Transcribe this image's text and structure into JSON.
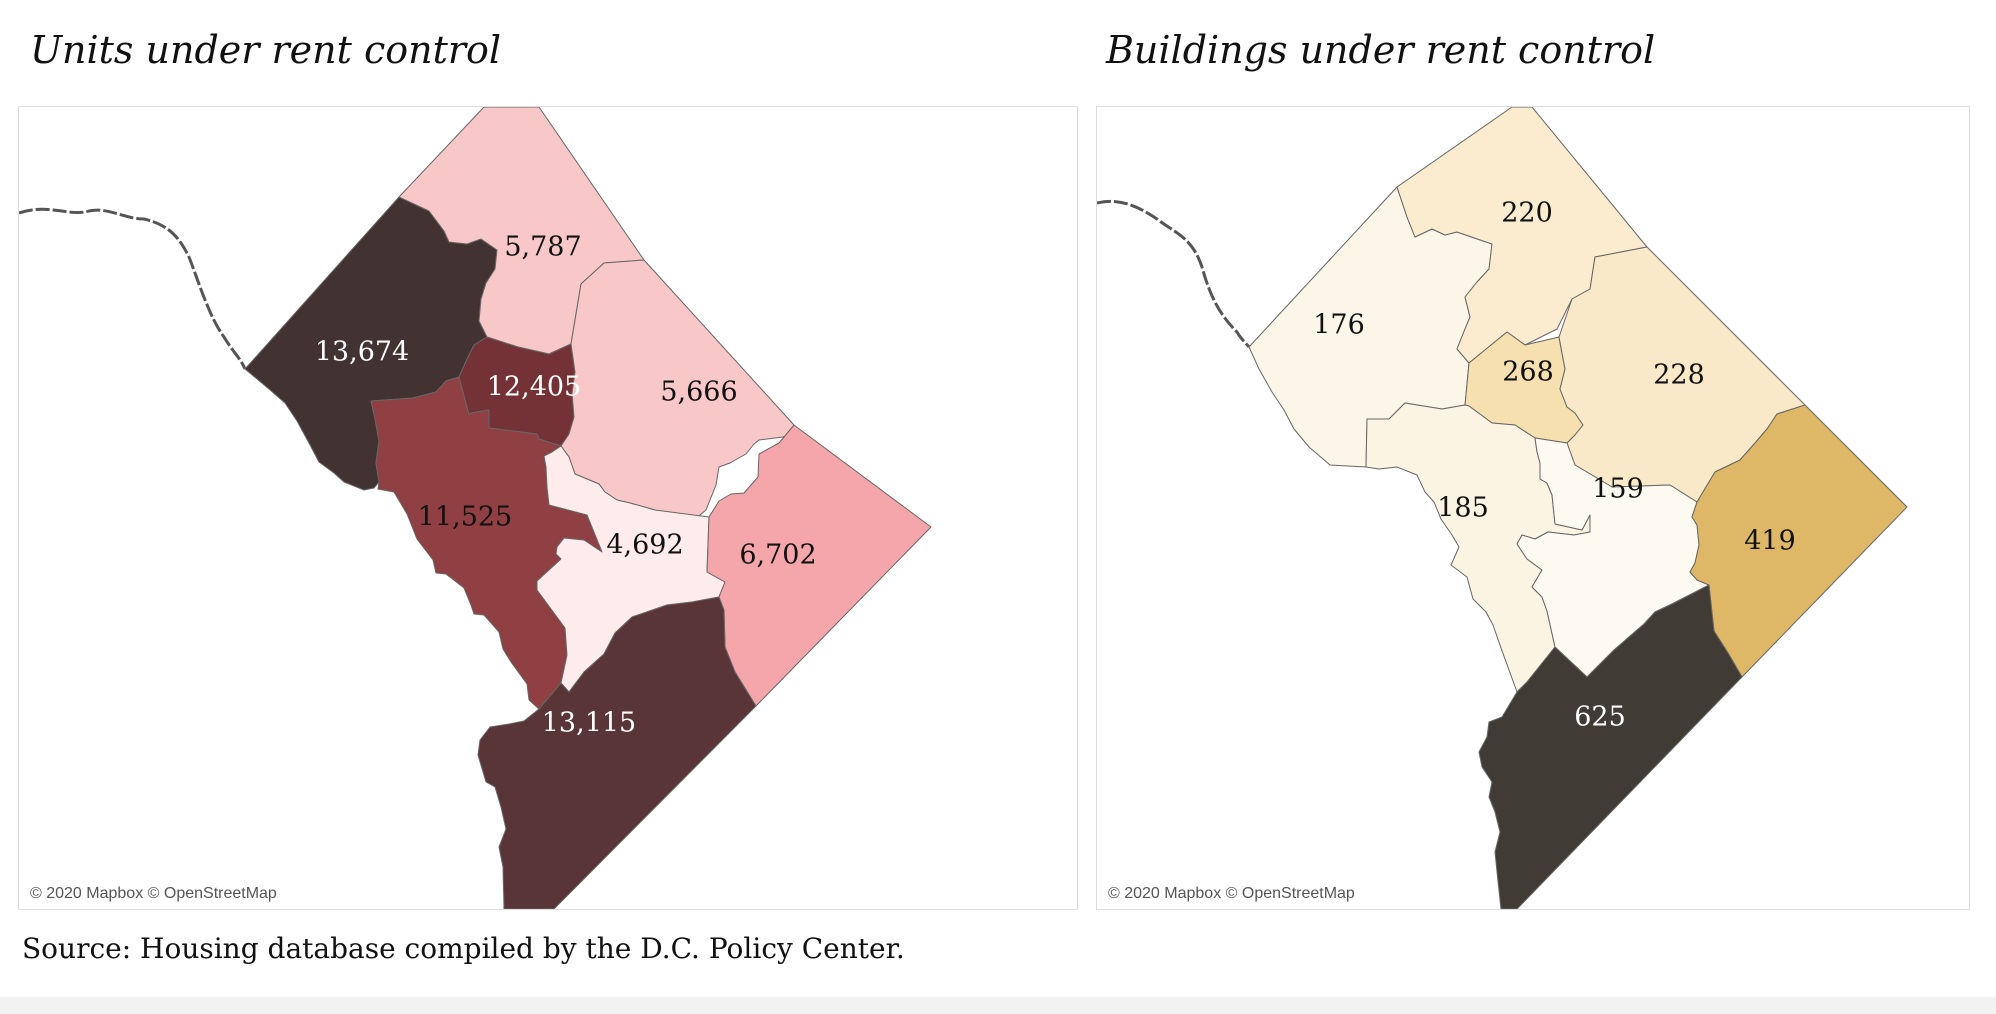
{
  "maps": [
    {
      "title": "Units under rent control",
      "attribution": "© 2020 Mapbox © OpenStreetMap",
      "legend": "none",
      "wards": [
        {
          "value": "13,674",
          "color": "#433232",
          "text_color": "#ffffff"
        },
        {
          "value": "5,787",
          "color": "#f8c8c9",
          "text_color": "#111111"
        },
        {
          "value": "12,405",
          "color": "#753236",
          "text_color": "#ffffff"
        },
        {
          "value": "5,666",
          "color": "#f8c8c9",
          "text_color": "#111111"
        },
        {
          "value": "11,525",
          "color": "#903f42",
          "text_color": "#111111"
        },
        {
          "value": "4,692",
          "color": "#fdeceb",
          "text_color": "#111111"
        },
        {
          "value": "6,702",
          "color": "#f5a6aa",
          "text_color": "#111111"
        },
        {
          "value": "13,115",
          "color": "#593538",
          "text_color": "#ffffff"
        }
      ]
    },
    {
      "title": "Buildings under rent control",
      "attribution": "© 2020 Mapbox © OpenStreetMap",
      "legend": "none",
      "wards": [
        {
          "value": "176",
          "color": "#fcf6e8",
          "text_color": "#111111"
        },
        {
          "value": "220",
          "color": "#fbecd0",
          "text_color": "#111111"
        },
        {
          "value": "268",
          "color": "#f6e0b0",
          "text_color": "#111111"
        },
        {
          "value": "228",
          "color": "#fae9c9",
          "text_color": "#111111"
        },
        {
          "value": "185",
          "color": "#fcf4e2",
          "text_color": "#111111"
        },
        {
          "value": "159",
          "color": "#fcfaf1",
          "text_color": "#111111"
        },
        {
          "value": "419",
          "color": "#dfb867",
          "text_color": "#111111"
        },
        {
          "value": "625",
          "color": "#403b35",
          "text_color": "#ffffff"
        }
      ]
    }
  ],
  "source": "Source: Housing database compiled by the D.C. Policy Center."
}
